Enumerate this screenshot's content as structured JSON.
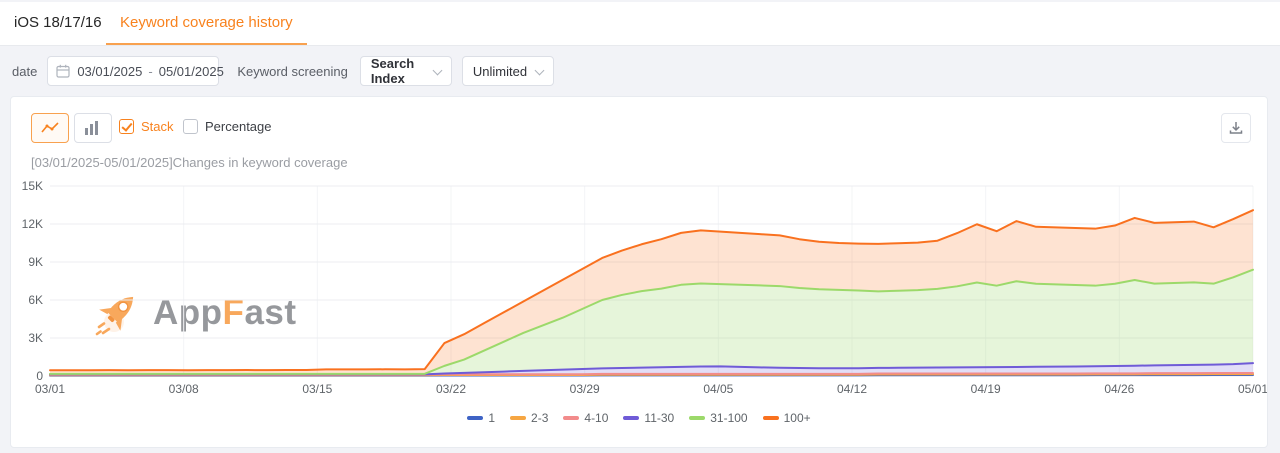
{
  "header": {
    "context_label": "iOS 18/17/16",
    "active_tab": "Keyword coverage history"
  },
  "filters": {
    "date_label": "date",
    "date_start": "03/01/2025",
    "date_separator": "-",
    "date_end": "05/01/2025",
    "keyword_screening_label": "Keyword screening",
    "search_index_value": "Search Index",
    "limit_value": "Unlimited"
  },
  "toolbar": {
    "stack_label": "Stack",
    "percentage_label": "Percentage",
    "icons": [
      "line-chart-icon",
      "bar-chart-icon",
      "download-icon"
    ]
  },
  "watermark": {
    "part1": "App",
    "part2": "F",
    "part3": "ast",
    "icon": "rocket-icon",
    "accent_color": "#f8a14f"
  },
  "ui_colors": {
    "accent_orange": "#f8821e",
    "panel_border": "#e8ebf0",
    "text_muted": "#9a9da3"
  },
  "chart_data": {
    "type": "area",
    "stacked": true,
    "title": "[03/01/2025-05/01/2025]Changes in keyword coverage",
    "xlabel": "",
    "ylabel": "",
    "ylim": [
      0,
      15000
    ],
    "y_ticks": [
      "0",
      "3K",
      "6K",
      "9K",
      "12K",
      "15K"
    ],
    "x_labels": [
      "03/01",
      "03/08",
      "03/15",
      "03/22",
      "03/29",
      "04/05",
      "04/12",
      "04/19",
      "04/26",
      "05/01"
    ],
    "grid": true,
    "legend_position": "bottom",
    "series": [
      {
        "name": "1",
        "color": "#3E63C5",
        "fill": "rgba(62,99,197,0.22)",
        "values": [
          30,
          30,
          30,
          30,
          30,
          30,
          30,
          30,
          30,
          30,
          30,
          30,
          30,
          30,
          30,
          30,
          30,
          30,
          30,
          30,
          40,
          40,
          40,
          40,
          40,
          40,
          40,
          40,
          50,
          50,
          50,
          50,
          50,
          50,
          50,
          50,
          50,
          50,
          50,
          50,
          50,
          50,
          60,
          60,
          60,
          60,
          60,
          60,
          60,
          60,
          60,
          60,
          60,
          70,
          70,
          70,
          70,
          70,
          70,
          80,
          80,
          80
        ]
      },
      {
        "name": "2-3",
        "color": "#F6A642",
        "fill": "rgba(246,166,66,0.22)",
        "values": [
          30,
          30,
          30,
          30,
          30,
          30,
          30,
          30,
          30,
          30,
          30,
          30,
          30,
          30,
          30,
          30,
          30,
          30,
          30,
          30,
          40,
          40,
          40,
          40,
          40,
          40,
          40,
          40,
          50,
          50,
          50,
          50,
          50,
          50,
          50,
          50,
          50,
          50,
          50,
          50,
          50,
          50,
          60,
          60,
          60,
          60,
          60,
          60,
          60,
          60,
          60,
          60,
          60,
          60,
          60,
          60,
          70,
          70,
          70,
          70,
          70,
          70
        ]
      },
      {
        "name": "4-10",
        "color": "#F28B8B",
        "fill": "rgba(242,139,139,0.25)",
        "values": [
          40,
          40,
          40,
          40,
          40,
          40,
          40,
          40,
          40,
          40,
          40,
          40,
          40,
          40,
          40,
          40,
          40,
          40,
          40,
          40,
          60,
          60,
          60,
          60,
          60,
          60,
          60,
          60,
          70,
          70,
          70,
          70,
          70,
          70,
          70,
          70,
          70,
          70,
          70,
          70,
          70,
          70,
          80,
          80,
          80,
          80,
          80,
          80,
          80,
          80,
          80,
          80,
          80,
          80,
          80,
          80,
          90,
          90,
          90,
          90,
          90,
          90
        ]
      },
      {
        "name": "11-30",
        "color": "#6F5BD7",
        "fill": "rgba(111,91,215,0.20)",
        "values": [
          30,
          30,
          30,
          30,
          30,
          30,
          30,
          30,
          30,
          30,
          30,
          30,
          30,
          30,
          30,
          30,
          30,
          30,
          30,
          30,
          60,
          110,
          160,
          210,
          260,
          310,
          360,
          410,
          430,
          460,
          490,
          520,
          550,
          580,
          590,
          550,
          510,
          480,
          460,
          440,
          440,
          440,
          440,
          450,
          460,
          470,
          480,
          490,
          500,
          510,
          530,
          540,
          550,
          560,
          580,
          600,
          610,
          630,
          650,
          660,
          700,
          780
        ]
      },
      {
        "name": "31-100",
        "color": "#9CD96A",
        "fill": "rgba(156,217,106,0.25)",
        "values": [
          40,
          40,
          40,
          40,
          40,
          40,
          40,
          40,
          40,
          40,
          40,
          40,
          40,
          40,
          40,
          40,
          40,
          40,
          40,
          40,
          600,
          1050,
          1700,
          2350,
          3000,
          3550,
          4100,
          4750,
          5400,
          5770,
          6040,
          6210,
          6480,
          6550,
          6490,
          6480,
          6470,
          6450,
          6320,
          6240,
          6190,
          6140,
          6040,
          6080,
          6120,
          6210,
          6400,
          6690,
          6430,
          6770,
          6550,
          6490,
          6430,
          6360,
          6490,
          6770,
          6450,
          6480,
          6510,
          6390,
          6850,
          7370
        ]
      },
      {
        "name": "100+",
        "color": "#F9711F",
        "fill": "rgba(249,113,31,0.20)",
        "values": [
          280,
          285,
          280,
          290,
          285,
          295,
          290,
          285,
          295,
          290,
          300,
          295,
          305,
          300,
          350,
          355,
          350,
          360,
          355,
          370,
          1800,
          2000,
          2160,
          2320,
          2480,
          2740,
          3000,
          3160,
          3320,
          3500,
          3700,
          3900,
          4100,
          4200,
          4150,
          4100,
          4050,
          4000,
          3850,
          3750,
          3700,
          3700,
          3750,
          3750,
          3750,
          3800,
          4200,
          4600,
          4300,
          4750,
          4500,
          4500,
          4500,
          4500,
          4600,
          4900,
          4800,
          4800,
          4800,
          4450,
          4600,
          4700
        ]
      }
    ]
  }
}
